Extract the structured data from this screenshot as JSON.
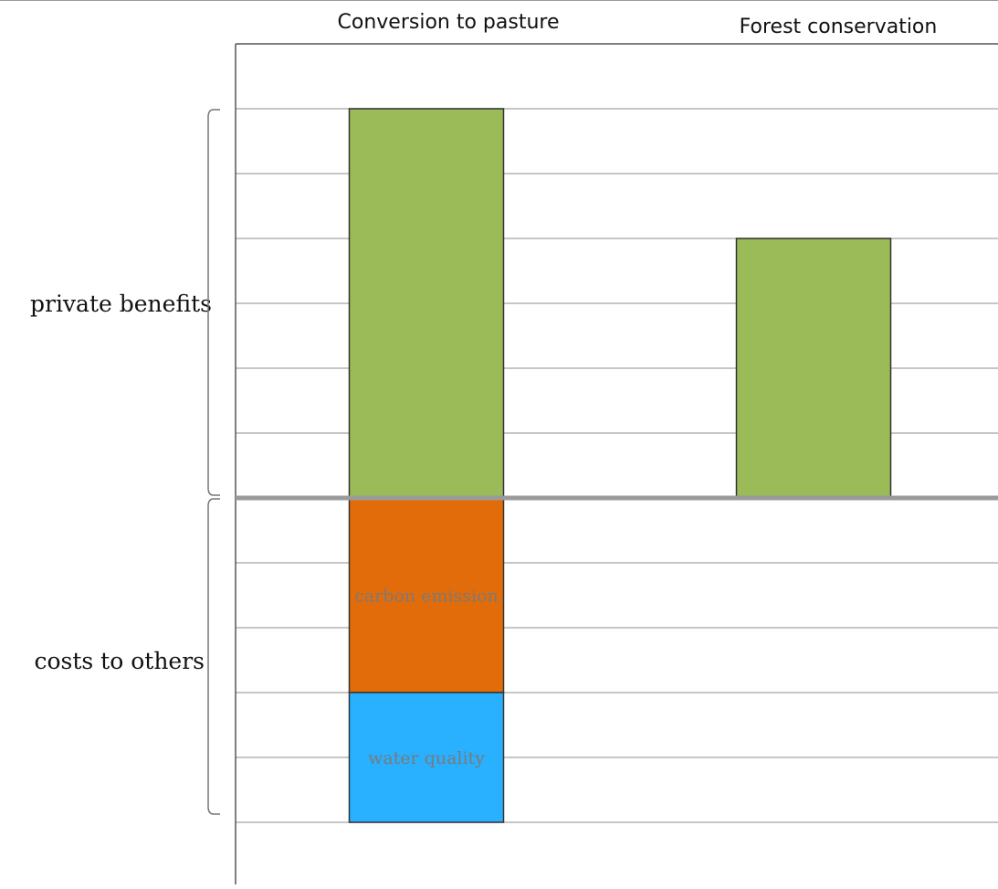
{
  "chart_data": {
    "type": "bar",
    "title": "",
    "xlabel": "",
    "ylabel": "",
    "categories": [
      "Conversion to pasture",
      "Forest conservation"
    ],
    "ylim": [
      -5,
      6
    ],
    "grid": true,
    "series": [
      {
        "name": "",
        "values": [
          6,
          4
        ],
        "color": "#9BBB59"
      },
      {
        "name": "carbon emission",
        "values": [
          -3,
          0
        ],
        "color": "#E36C0A"
      },
      {
        "name": "water quality",
        "values": [
          -2,
          0
        ],
        "color": "#29B0FF"
      }
    ],
    "side_labels": {
      "positive": "private benefits",
      "negative": "costs to others"
    },
    "colors": {
      "grid": "#b3b3b3",
      "baseline": "#9a9a9a",
      "axis": "#555555",
      "bar_outline": "#333333",
      "bracket": "#777777"
    }
  }
}
